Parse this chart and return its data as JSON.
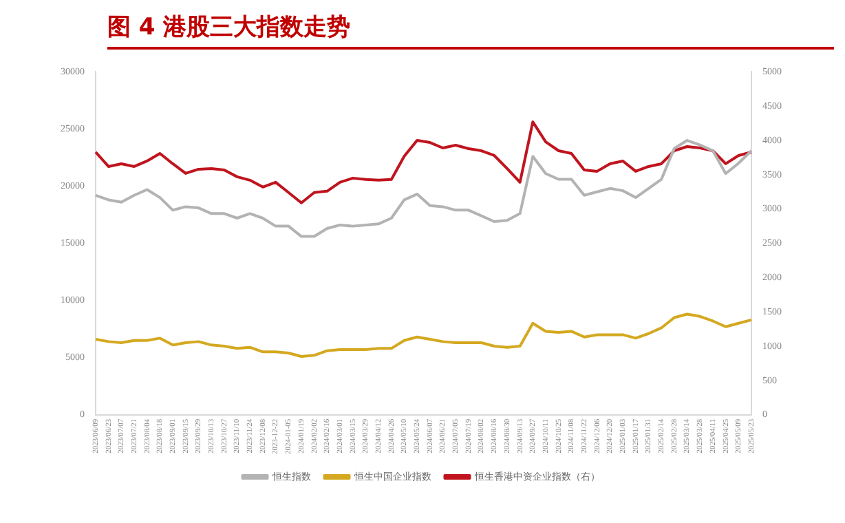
{
  "chart_data": {
    "type": "line",
    "title": "图 4  港股三大指数走势",
    "categories": [
      "2023/06/09",
      "2023/06/23",
      "2023/07/07",
      "2023/07/21",
      "2023/08/04",
      "2023/08/18",
      "2023/09/01",
      "2023/09/15",
      "2023/09/29",
      "2023/10/13",
      "2023/10/27",
      "2023/11/10",
      "2023/11/24",
      "2023/12/08",
      "2023-12-22",
      "2024-01-05",
      "2024/01/19",
      "2024/02/02",
      "2024/02/16",
      "2024/03/01",
      "2024/03/15",
      "2024/03/29",
      "2024/04/12",
      "2024/04/26",
      "2024/05/10",
      "2024/05/24",
      "2024/06/07",
      "2024/06/21",
      "2024/07/05",
      "2024/07/19",
      "2024/08/02",
      "2024/08/16",
      "2024/08/30",
      "2024/09/13",
      "2024/09/27",
      "2024/10/11",
      "2024/10/25",
      "2024/11/08",
      "2024/11/22",
      "2024/12/06",
      "2024/12/20",
      "2025/01/03",
      "2025/01/17",
      "2025/01/31",
      "2025/02/14",
      "2025/02/28",
      "2025/03/14",
      "2025/03/28",
      "2025/04/11",
      "2025/04/25",
      "2025/05/09",
      "2025/05/23"
    ],
    "series": [
      {
        "name": "恒生指数",
        "color": "#b3b3b3",
        "values": [
          19200,
          18800,
          18600,
          19200,
          19700,
          19000,
          17900,
          18200,
          18100,
          17600,
          17600,
          17200,
          17600,
          17200,
          16500,
          16500,
          15600,
          15600,
          16300,
          16600,
          16500,
          16600,
          16700,
          17200,
          18800,
          19300,
          18300,
          18200,
          17900,
          17900,
          17400,
          16900,
          17000,
          17600,
          22600,
          21100,
          20600,
          20600,
          19200,
          19500,
          19800,
          19600,
          19000,
          19800,
          20600,
          23300,
          24000,
          23600,
          23100,
          21100,
          22000,
          23100
        ]
      },
      {
        "name": "恒生中国企业指数",
        "color": "#d4a820",
        "values": [
          6600,
          6400,
          6300,
          6500,
          6500,
          6700,
          6100,
          6300,
          6400,
          6100,
          6000,
          5800,
          5900,
          5500,
          5500,
          5400,
          5100,
          5200,
          5600,
          5700,
          5700,
          5700,
          5800,
          5800,
          6500,
          6800,
          6600,
          6400,
          6300,
          6300,
          6300,
          6000,
          5900,
          6000,
          8000,
          7300,
          7200,
          7300,
          6800,
          7000,
          7000,
          7000,
          6700,
          7100,
          7600,
          8500,
          8800,
          8600,
          8200,
          7700,
          8000,
          8300
        ]
      },
      {
        "name": "恒生香港中资企业指数（右）",
        "color": "#c0141e",
        "axis": "y2",
        "values": [
          3830,
          3620,
          3660,
          3620,
          3700,
          3810,
          3660,
          3520,
          3580,
          3590,
          3570,
          3470,
          3420,
          3320,
          3390,
          3240,
          3090,
          3240,
          3260,
          3390,
          3450,
          3430,
          3420,
          3430,
          3770,
          4000,
          3970,
          3890,
          3930,
          3880,
          3850,
          3780,
          3590,
          3390,
          4270,
          3980,
          3850,
          3810,
          3570,
          3550,
          3660,
          3700,
          3550,
          3620,
          3660,
          3850,
          3910,
          3890,
          3850,
          3660,
          3780,
          3830
        ]
      }
    ],
    "ylim": [
      0,
      30000
    ],
    "yticks": [
      0,
      5000,
      10000,
      15000,
      20000,
      25000,
      30000
    ],
    "y2lim": [
      0,
      5000
    ],
    "y2ticks": [
      0,
      500,
      1000,
      1500,
      2000,
      2500,
      3000,
      3500,
      4000,
      4500,
      5000
    ],
    "grid": false,
    "legend": "bottom",
    "marker": "none",
    "line_style": "solid"
  }
}
